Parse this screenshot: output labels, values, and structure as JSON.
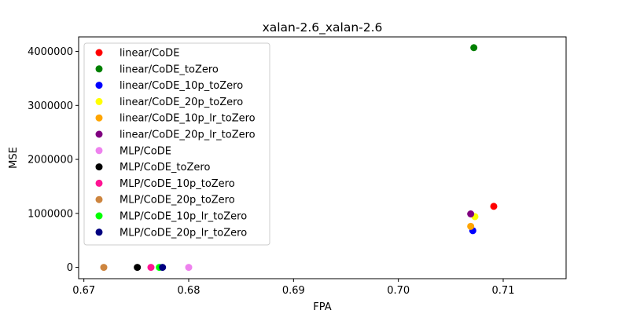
{
  "chart_data": {
    "type": "scatter",
    "title": "xalan-2.6_xalan-2.6",
    "xlabel": "FPA",
    "ylabel": "MSE",
    "xlim": [
      0.6695,
      0.716
    ],
    "ylim": [
      -210000,
      4270000
    ],
    "xticks": [
      0.67,
      0.68,
      0.69,
      0.7,
      0.71
    ],
    "xtick_labels": [
      "0.67",
      "0.68",
      "0.69",
      "0.70",
      "0.71"
    ],
    "yticks": [
      0,
      1000000,
      2000000,
      3000000,
      4000000
    ],
    "ytick_labels": [
      "0",
      "1000000",
      "2000000",
      "3000000",
      "4000000"
    ],
    "grid": false,
    "legend_position": "upper-left",
    "series": [
      {
        "name": "linear/CoDE",
        "color": "#ff0000",
        "points": [
          [
            0.7091,
            1130000
          ]
        ]
      },
      {
        "name": "linear/CoDE_toZero",
        "color": "#008000",
        "points": [
          [
            0.7072,
            4070000
          ]
        ]
      },
      {
        "name": "linear/CoDE_10p_toZero",
        "color": "#0000ff",
        "points": [
          [
            0.7071,
            680000
          ]
        ]
      },
      {
        "name": "linear/CoDE_20p_toZero",
        "color": "#ffff00",
        "points": [
          [
            0.7073,
            940000
          ]
        ]
      },
      {
        "name": "linear/CoDE_10p_lr_toZero",
        "color": "#ffa500",
        "points": [
          [
            0.7069,
            760000
          ]
        ]
      },
      {
        "name": "linear/CoDE_20p_lr_toZero",
        "color": "#800080",
        "points": [
          [
            0.7069,
            990000
          ]
        ]
      },
      {
        "name": "MLP/CoDE",
        "color": "#ee82ee",
        "points": [
          [
            0.68,
            0
          ]
        ]
      },
      {
        "name": "MLP/CoDE_toZero",
        "color": "#000000",
        "points": [
          [
            0.6751,
            0
          ]
        ]
      },
      {
        "name": "MLP/CoDE_10p_toZero",
        "color": "#ff1493",
        "points": [
          [
            0.6764,
            0
          ]
        ]
      },
      {
        "name": "MLP/CoDE_20p_toZero",
        "color": "#cd853f",
        "points": [
          [
            0.6719,
            0
          ]
        ]
      },
      {
        "name": "MLP/CoDE_10p_lr_toZero",
        "color": "#00ff00",
        "points": [
          [
            0.6772,
            0
          ]
        ]
      },
      {
        "name": "MLP/CoDE_20p_lr_toZero",
        "color": "#000080",
        "points": [
          [
            0.6775,
            0
          ]
        ]
      }
    ]
  }
}
